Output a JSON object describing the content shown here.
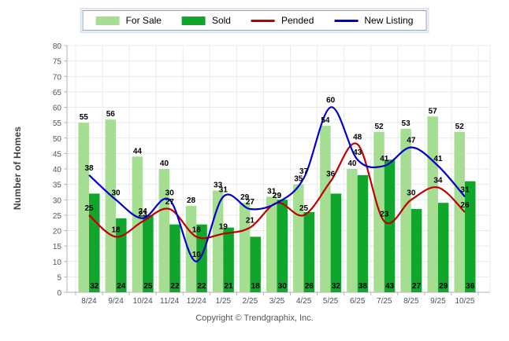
{
  "chart_data": {
    "type": "bar+line",
    "title": "",
    "categories": [
      "8/24",
      "9/24",
      "10/24",
      "11/24",
      "12/24",
      "1/25",
      "2/25",
      "3/25",
      "4/25",
      "5/25",
      "6/25",
      "7/25",
      "8/25",
      "9/25",
      "10/25"
    ],
    "series": [
      {
        "name": "For Sale",
        "type": "bar",
        "color": "#A5DE92",
        "label_position": "above",
        "values": [
          55,
          56,
          44,
          40,
          28,
          33,
          29,
          31,
          35,
          54,
          40,
          52,
          53,
          57,
          52
        ]
      },
      {
        "name": "Sold",
        "type": "bar",
        "color": "#0FA62B",
        "label_position": "inside-bottom",
        "values": [
          32,
          24,
          25,
          22,
          22,
          21,
          18,
          30,
          26,
          32,
          38,
          43,
          27,
          29,
          36
        ]
      },
      {
        "name": "Pended",
        "type": "line",
        "color": "#C00000",
        "label_position": "above",
        "values": [
          25,
          18,
          23,
          27,
          18,
          19,
          21,
          29,
          25,
          36,
          48,
          23,
          30,
          34,
          26
        ]
      },
      {
        "name": "New Listing",
        "type": "line",
        "color": "#0000CC",
        "label_position": "above",
        "values": [
          38,
          30,
          24,
          30,
          10,
          31,
          27,
          29,
          37,
          60,
          43,
          41,
          47,
          41,
          31
        ]
      }
    ],
    "xlabel": "",
    "ylabel": "Number of Homes",
    "ylim": [
      0,
      80
    ],
    "ytick_step": 5,
    "grid": true,
    "legend_position": "top"
  },
  "footer": {
    "copyright": "Copyright © Trendgraphix, Inc."
  }
}
